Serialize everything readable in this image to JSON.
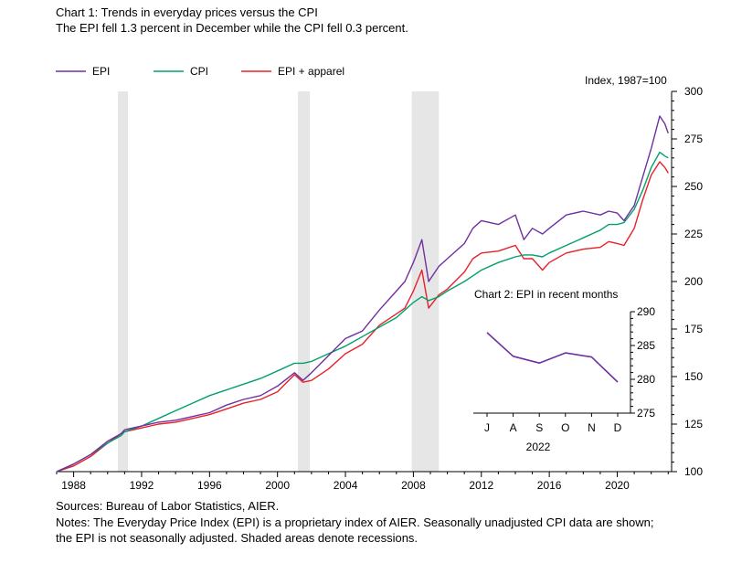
{
  "title": "Chart 1: Trends in everyday prices versus the CPI",
  "subtitle": "The EPI fell 1.3 percent in December while the CPI fell 0.3 percent.",
  "units_label": "Index, 1987=100",
  "sources": "Sources: Bureau of Labor Statistics, AIER.",
  "notes_line1": "Notes: The Everyday Price Index (EPI) is a proprietary index of AIER. Seasonally unadjusted CPI data are shown;",
  "notes_line2": "the EPI is not seasonally adjusted. Shaded areas denote recessions.",
  "colors": {
    "epi": "#7030a0",
    "cpi": "#00a06b",
    "epi_apparel": "#e8202a",
    "recession": "#e6e6e6"
  },
  "chart_data": [
    {
      "type": "line",
      "title": "Chart 1: Trends in everyday prices versus the CPI",
      "subtitle": "The EPI fell 1.3 percent in December while the CPI fell 0.3 percent.",
      "ylabel": "Index, 1987=100",
      "xlim": [
        1987,
        2023.2
      ],
      "ylim": [
        100,
        300
      ],
      "x_ticks": [
        "1988",
        "1992",
        "1996",
        "2000",
        "2004",
        "2008",
        "2012",
        "2016",
        "2020"
      ],
      "y_ticks": [
        "100",
        "125",
        "150",
        "175",
        "200",
        "225",
        "250",
        "275",
        "300"
      ],
      "legend": "top-left",
      "recessions": [
        [
          1990.6,
          1991.2
        ],
        [
          2001.2,
          2001.9
        ],
        [
          2007.9,
          2009.5
        ]
      ],
      "x": [
        1987,
        1988,
        1989,
        1990,
        1990.8,
        1991,
        1992,
        1993,
        1994,
        1995,
        1996,
        1997,
        1998,
        1999,
        2000,
        2001,
        2001.5,
        2002,
        2003,
        2004,
        2005,
        2006,
        2007,
        2007.5,
        2008,
        2008.5,
        2008.9,
        2009.5,
        2010,
        2011,
        2011.5,
        2012,
        2013,
        2014,
        2014.5,
        2015,
        2015.6,
        2016,
        2017,
        2018,
        2019,
        2019.5,
        2020,
        2020.4,
        2021,
        2021.5,
        2022,
        2022.5,
        2022.8,
        2023
      ],
      "series": [
        {
          "name": "EPI",
          "values": [
            100,
            104,
            109,
            116,
            120,
            122,
            124,
            126,
            127,
            129,
            131,
            135,
            138,
            140,
            145,
            152,
            148,
            152,
            161,
            170,
            174,
            185,
            195,
            200,
            210,
            222,
            200,
            208,
            212,
            220,
            228,
            232,
            230,
            235,
            222,
            228,
            225,
            228,
            235,
            237,
            235,
            237,
            236,
            232,
            240,
            255,
            270,
            287,
            283,
            278
          ]
        },
        {
          "name": "CPI",
          "values": [
            100,
            104,
            109,
            115,
            119,
            121,
            124,
            128,
            132,
            136,
            140,
            143,
            146,
            149,
            153,
            157,
            157,
            158,
            162,
            166,
            171,
            176,
            181,
            185,
            189,
            192,
            190,
            192,
            195,
            200,
            203,
            206,
            210,
            213,
            214,
            214,
            213,
            215,
            219,
            223,
            227,
            230,
            230,
            231,
            238,
            248,
            260,
            268,
            266,
            265
          ]
        },
        {
          "name": "EPI + apparel",
          "values": [
            100,
            103,
            108,
            115,
            120,
            121,
            123,
            125,
            126,
            128,
            130,
            133,
            136,
            138,
            142,
            151,
            147,
            148,
            154,
            162,
            167,
            177,
            183,
            186,
            195,
            206,
            186,
            193,
            196,
            205,
            212,
            215,
            216,
            219,
            212,
            212,
            206,
            210,
            215,
            217,
            218,
            221,
            220,
            219,
            228,
            243,
            256,
            263,
            260,
            257
          ]
        }
      ]
    },
    {
      "type": "line",
      "title": "Chart 2: EPI in recent months",
      "categories": [
        "J",
        "A",
        "S",
        "O",
        "N",
        "D"
      ],
      "xlabel": "2022",
      "ylim": [
        275,
        290
      ],
      "y_ticks": [
        "275",
        "280",
        "285",
        "290"
      ],
      "series": [
        {
          "name": "EPI",
          "values": [
            286.9,
            283.4,
            282.4,
            283.9,
            283.3,
            279.6
          ]
        }
      ]
    }
  ]
}
